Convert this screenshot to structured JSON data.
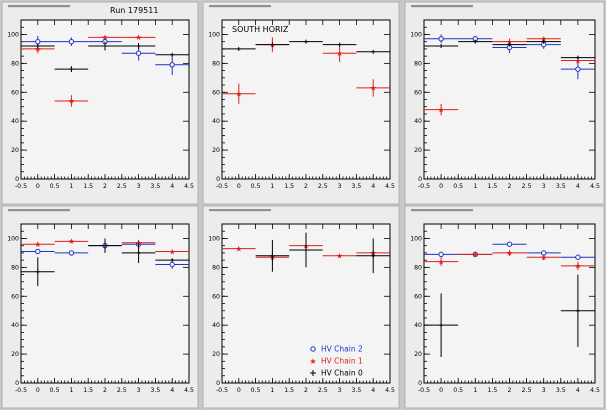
{
  "run_label": "Run 179511",
  "colors": {
    "chain2": "#1f35c8",
    "chain1": "#e0201a",
    "chain0": "#000000",
    "pad_bg": "#ececec",
    "window_bg": "#c8c8c8"
  },
  "legend": [
    {
      "label": "HV Chain 2",
      "color_key": "chain2",
      "marker": "open-circle"
    },
    {
      "label": "HV Chain 1",
      "color_key": "chain1",
      "marker": "star"
    },
    {
      "label": "HV Chain 0",
      "color_key": "chain0",
      "marker": "cross"
    }
  ],
  "chart_data": [
    {
      "type": "scatter",
      "title": "",
      "annotation": "Run 179511",
      "xlim": [
        -0.5,
        4.5
      ],
      "ylim": [
        0,
        110
      ],
      "xticks": [
        -0.5,
        0,
        0.5,
        1,
        1.5,
        2,
        2.5,
        3,
        3.5,
        4,
        4.5
      ],
      "xtick_labels": [
        "-0.5",
        "0",
        "0.5",
        "1",
        "1.5",
        "2",
        "2.5",
        "3",
        "3.5",
        "4",
        "4.5"
      ],
      "yticks": [
        0,
        20,
        40,
        60,
        80,
        100
      ],
      "series": [
        {
          "color_key": "chain2",
          "marker": "open-circle",
          "points": [
            {
              "x": 0,
              "y": 95,
              "yerr": 4
            },
            {
              "x": 1,
              "y": 95,
              "yerr": 3
            },
            {
              "x": 2,
              "y": 95,
              "yerr": 3
            },
            {
              "x": 3,
              "y": 87,
              "yerr": 5
            },
            {
              "x": 4,
              "y": 79,
              "yerr": 7
            }
          ]
        },
        {
          "color_key": "chain1",
          "marker": "star",
          "points": [
            {
              "x": 0,
              "y": 90,
              "yerr": 3
            },
            {
              "x": 1,
              "y": 54,
              "yerr": 4
            },
            {
              "x": 2,
              "y": 98,
              "yerr": 1
            },
            {
              "x": 3,
              "y": 98,
              "yerr": 1
            }
          ]
        },
        {
          "color_key": "chain0",
          "marker": "cross",
          "points": [
            {
              "x": 0,
              "y": 92,
              "yerr": 0
            },
            {
              "x": 1,
              "y": 76,
              "yerr": 2
            },
            {
              "x": 2,
              "y": 92,
              "yerr": 3
            },
            {
              "x": 3,
              "y": 92,
              "yerr": 2
            },
            {
              "x": 4,
              "y": 86,
              "yerr": 0
            }
          ]
        }
      ]
    },
    {
      "type": "scatter",
      "title": "",
      "annotation": "SOUTH HORIZ",
      "xlim": [
        -0.5,
        4.5
      ],
      "ylim": [
        0,
        110
      ],
      "xticks": [
        -0.5,
        0,
        0.5,
        1,
        1.5,
        2,
        2.5,
        3,
        3.5,
        4,
        4.5
      ],
      "xtick_labels": [
        "-0.5",
        "0",
        "0.5",
        "1",
        "1.5",
        "2",
        "2.5",
        "3",
        "3.5",
        "4",
        "4.5"
      ],
      "yticks": [
        0,
        20,
        40,
        60,
        80,
        100
      ],
      "series": [
        {
          "color_key": "chain1",
          "marker": "star",
          "points": [
            {
              "x": 0,
              "y": 59,
              "yerr": 7
            },
            {
              "x": 1,
              "y": 93,
              "yerr": 5
            },
            {
              "x": 3,
              "y": 87,
              "yerr": 6
            },
            {
              "x": 4,
              "y": 63,
              "yerr": 6
            }
          ]
        },
        {
          "color_key": "chain0",
          "marker": "cross",
          "points": [
            {
              "x": 0,
              "y": 90,
              "yerr": 0
            },
            {
              "x": 1,
              "y": 93,
              "yerr": 0
            },
            {
              "x": 2,
              "y": 95,
              "yerr": 0
            },
            {
              "x": 3,
              "y": 93,
              "yerr": 0
            },
            {
              "x": 4,
              "y": 88,
              "yerr": 0
            }
          ]
        }
      ]
    },
    {
      "type": "scatter",
      "title": "",
      "annotation": "",
      "xlim": [
        -0.5,
        4.5
      ],
      "ylim": [
        0,
        110
      ],
      "xticks": [
        -0.5,
        0,
        0.5,
        1,
        1.5,
        2,
        2.5,
        3,
        3.5,
        4,
        4.5
      ],
      "xtick_labels": [
        "-0.5",
        "0",
        "0.5",
        "1",
        "1.5",
        "2",
        "2.5",
        "3",
        "3.5",
        "4",
        "4.5"
      ],
      "yticks": [
        0,
        20,
        40,
        60,
        80,
        100
      ],
      "series": [
        {
          "color_key": "chain2",
          "marker": "open-circle",
          "points": [
            {
              "x": 0,
              "y": 97,
              "yerr": 3
            },
            {
              "x": 1,
              "y": 97,
              "yerr": 2
            },
            {
              "x": 2,
              "y": 91,
              "yerr": 4
            },
            {
              "x": 3,
              "y": 93,
              "yerr": 3
            },
            {
              "x": 4,
              "y": 76,
              "yerr": 7
            }
          ]
        },
        {
          "color_key": "chain1",
          "marker": "star",
          "points": [
            {
              "x": 0,
              "y": 48,
              "yerr": 4
            },
            {
              "x": 2,
              "y": 95,
              "yerr": 2
            },
            {
              "x": 3,
              "y": 97,
              "yerr": 1
            },
            {
              "x": 4,
              "y": 82,
              "yerr": 2
            }
          ]
        },
        {
          "color_key": "chain0",
          "marker": "cross",
          "points": [
            {
              "x": 0,
              "y": 92,
              "yerr": 0
            },
            {
              "x": 1,
              "y": 95,
              "yerr": 0
            },
            {
              "x": 2,
              "y": 93,
              "yerr": 0
            },
            {
              "x": 3,
              "y": 95,
              "yerr": 0
            },
            {
              "x": 4,
              "y": 84,
              "yerr": 0
            }
          ]
        }
      ]
    },
    {
      "type": "scatter",
      "title": "",
      "annotation": "",
      "xlim": [
        -0.5,
        4.5
      ],
      "ylim": [
        0,
        110
      ],
      "xticks": [
        -0.5,
        0,
        0.5,
        1,
        1.5,
        2,
        2.5,
        3,
        3.5,
        4,
        4.5
      ],
      "xtick_labels": [
        "-0.5",
        "0",
        "0.5",
        "1",
        "1.5",
        "2",
        "2.5",
        "3",
        "3.5",
        "4",
        "4.5"
      ],
      "yticks": [
        0,
        20,
        40,
        60,
        80,
        100
      ],
      "series": [
        {
          "color_key": "chain2",
          "marker": "open-circle",
          "points": [
            {
              "x": 0,
              "y": 91,
              "yerr": 1
            },
            {
              "x": 1,
              "y": 90,
              "yerr": 1
            },
            {
              "x": 2,
              "y": 95,
              "yerr": 3
            },
            {
              "x": 3,
              "y": 96,
              "yerr": 3
            },
            {
              "x": 4,
              "y": 82,
              "yerr": 3
            }
          ]
        },
        {
          "color_key": "chain1",
          "marker": "star",
          "points": [
            {
              "x": 0,
              "y": 96,
              "yerr": 1
            },
            {
              "x": 1,
              "y": 98,
              "yerr": 1
            },
            {
              "x": 3,
              "y": 97,
              "yerr": 1
            },
            {
              "x": 4,
              "y": 91,
              "yerr": 1
            }
          ]
        },
        {
          "color_key": "chain0",
          "marker": "cross",
          "points": [
            {
              "x": 0,
              "y": 77,
              "yerr": 10
            },
            {
              "x": 2,
              "y": 95,
              "yerr": 5
            },
            {
              "x": 3,
              "y": 90,
              "yerr": 7
            },
            {
              "x": 4,
              "y": 85,
              "yerr": 0
            }
          ]
        }
      ]
    },
    {
      "type": "scatter",
      "title": "",
      "annotation": "",
      "xlim": [
        -0.5,
        4.5
      ],
      "ylim": [
        0,
        110
      ],
      "xticks": [
        -0.5,
        0,
        0.5,
        1,
        1.5,
        2,
        2.5,
        3,
        3.5,
        4,
        4.5
      ],
      "xtick_labels": [
        "-0.5",
        "0",
        "0.5",
        "1",
        "1.5",
        "2",
        "2.5",
        "3",
        "3.5",
        "4",
        "4.5"
      ],
      "yticks": [
        0,
        20,
        40,
        60,
        80,
        100
      ],
      "series": [
        {
          "color_key": "chain1",
          "marker": "star",
          "points": [
            {
              "x": 0,
              "y": 93,
              "yerr": 1
            },
            {
              "x": 1,
              "y": 87,
              "yerr": 3
            },
            {
              "x": 2,
              "y": 95,
              "yerr": 5
            },
            {
              "x": 3,
              "y": 88,
              "yerr": 1
            },
            {
              "x": 4,
              "y": 90,
              "yerr": 2
            }
          ]
        },
        {
          "color_key": "chain0",
          "marker": "cross",
          "points": [
            {
              "x": 1,
              "y": 88,
              "yerr": 11
            },
            {
              "x": 2,
              "y": 92,
              "yerr": 12
            },
            {
              "x": 4,
              "y": 88,
              "yerr": 12
            }
          ]
        }
      ]
    },
    {
      "type": "scatter",
      "title": "",
      "annotation": "",
      "xlim": [
        -0.5,
        4.5
      ],
      "ylim": [
        0,
        110
      ],
      "xticks": [
        -0.5,
        0,
        0.5,
        1,
        1.5,
        2,
        2.5,
        3,
        3.5,
        4,
        4.5
      ],
      "xtick_labels": [
        "-0.5",
        "0",
        "0.5",
        "1",
        "1.5",
        "2",
        "2.5",
        "3",
        "3.5",
        "4",
        "4.5"
      ],
      "yticks": [
        0,
        20,
        40,
        60,
        80,
        100
      ],
      "series": [
        {
          "color_key": "chain2",
          "marker": "open-circle",
          "points": [
            {
              "x": 0,
              "y": 89,
              "yerr": 1
            },
            {
              "x": 1,
              "y": 89,
              "yerr": 1
            },
            {
              "x": 2,
              "y": 96,
              "yerr": 1
            },
            {
              "x": 3,
              "y": 90,
              "yerr": 1
            },
            {
              "x": 4,
              "y": 87,
              "yerr": 1
            }
          ]
        },
        {
          "color_key": "chain1",
          "marker": "star",
          "points": [
            {
              "x": 0,
              "y": 84,
              "yerr": 3
            },
            {
              "x": 1,
              "y": 89,
              "yerr": 2
            },
            {
              "x": 2,
              "y": 90,
              "yerr": 2
            },
            {
              "x": 3,
              "y": 87,
              "yerr": 2
            },
            {
              "x": 4,
              "y": 81,
              "yerr": 3
            }
          ]
        },
        {
          "color_key": "chain0",
          "marker": "cross",
          "points": [
            {
              "x": 0,
              "y": 40,
              "yerr": 22
            },
            {
              "x": 4,
              "y": 50,
              "yerr": 25
            }
          ]
        }
      ]
    }
  ]
}
